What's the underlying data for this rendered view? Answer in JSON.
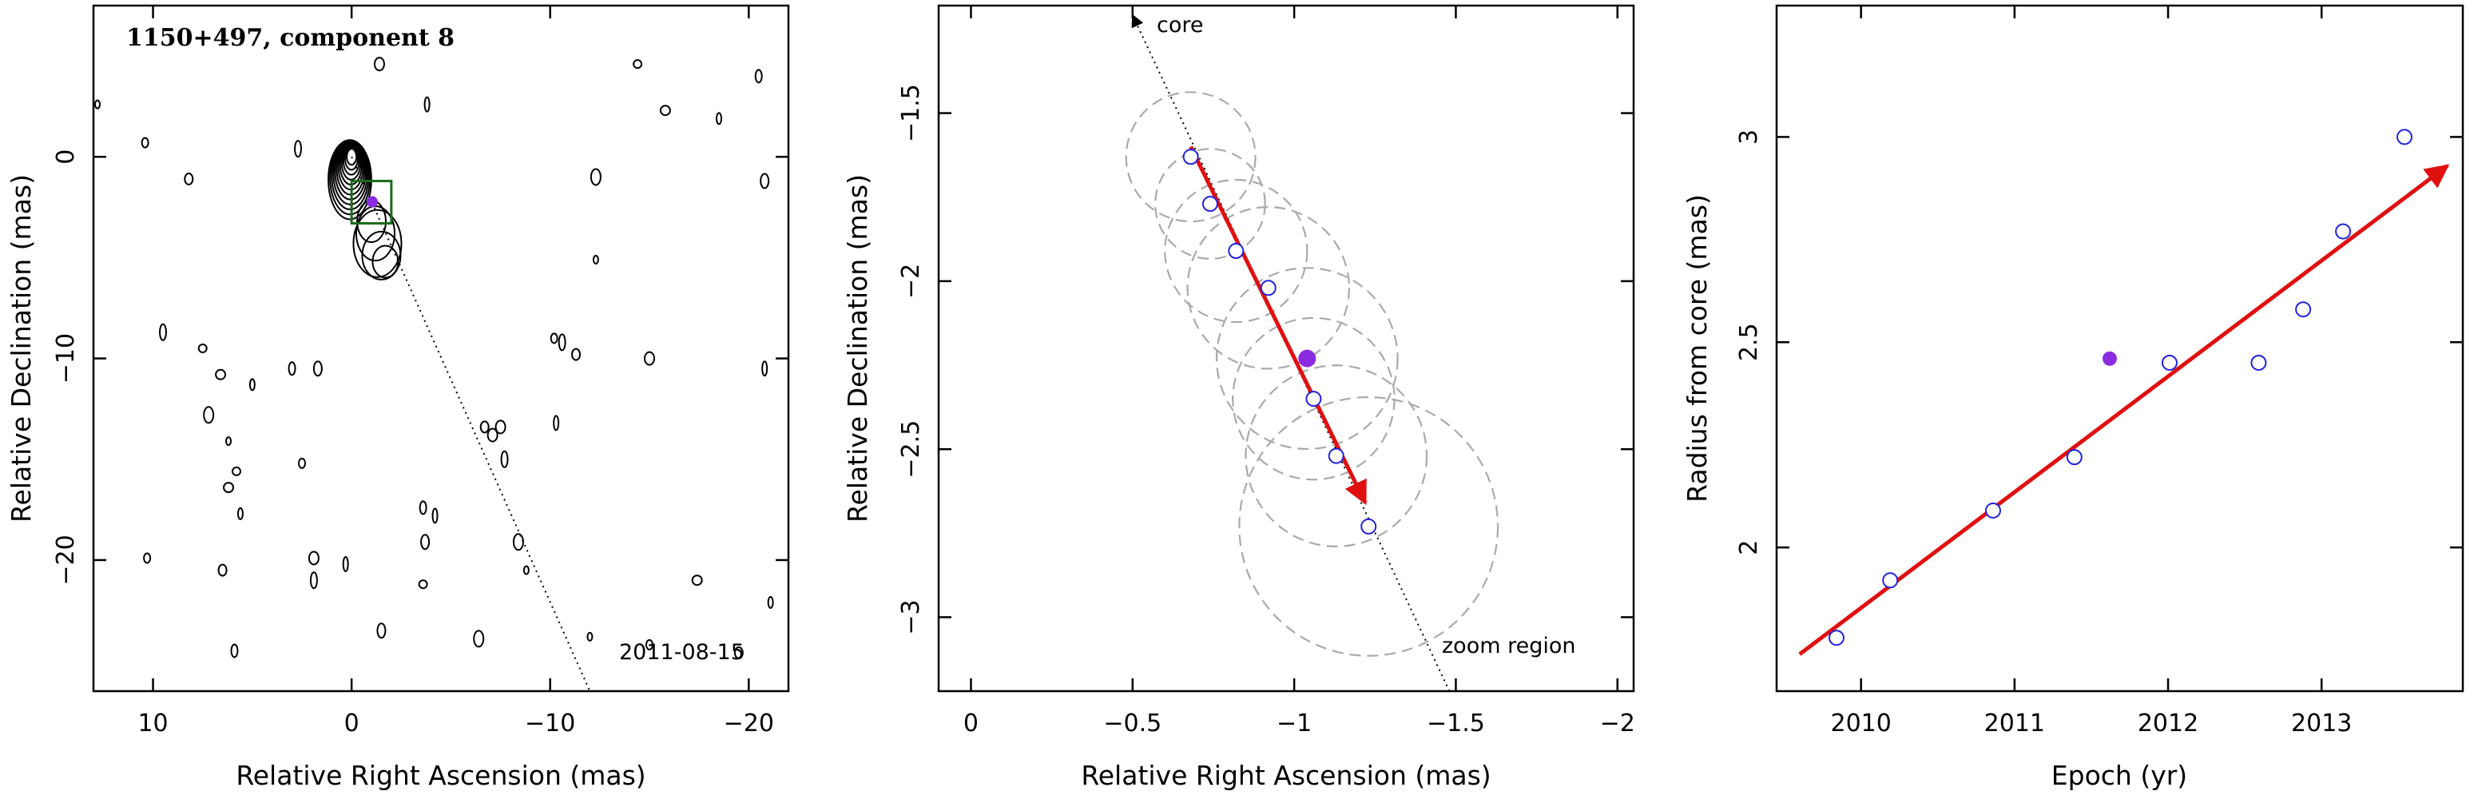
{
  "chart_data": [
    {
      "type": "scatter",
      "panel": "contour map",
      "title": "1150+497, component 8",
      "date_label": "2011-08-15",
      "xlabel": "Relative Right Ascension (mas)",
      "ylabel": "Relative Declination (mas)",
      "xlim": [
        13,
        -22
      ],
      "ylim": [
        -26.5,
        7.5
      ],
      "xticks": [
        10,
        0,
        -10,
        -20
      ],
      "xtick_labels": [
        "10",
        "0",
        "−10",
        "−20"
      ],
      "yticks": [
        0,
        -10,
        -20
      ],
      "ytick_labels": [
        "0",
        "−10",
        "−20"
      ],
      "core": {
        "x": 0,
        "y": 0
      },
      "component": {
        "x": -1.04,
        "y": -2.23
      },
      "zoom_box": {
        "x": [
          0,
          -2
        ],
        "y": [
          -1.2,
          -3.3
        ]
      },
      "jet_line": {
        "x": [
          0,
          -12
        ],
        "y": [
          0,
          -26.5
        ]
      },
      "colors": {
        "component": "#8a2be2",
        "zoom_box": "#1a6b1a"
      }
    },
    {
      "type": "scatter",
      "panel": "zoom region",
      "xlabel": "Relative Right Ascension (mas)",
      "ylabel": "Relative Declination (mas)",
      "xlim": [
        0.1,
        -2.05
      ],
      "ylim": [
        -3.22,
        -1.18
      ],
      "xticks": [
        0,
        -0.5,
        -1,
        -1.5,
        -2
      ],
      "xtick_labels": [
        "0",
        "−0.5",
        "−1",
        "−1.5",
        "−2"
      ],
      "yticks": [
        -1.5,
        -2,
        -2.5,
        -3
      ],
      "ytick_labels": [
        "−1.5",
        "−2",
        "−2.5",
        "−3"
      ],
      "annotations": [
        "core",
        "zoom region"
      ],
      "points": [
        {
          "x": -0.68,
          "y": -1.63,
          "r": 0.2
        },
        {
          "x": -0.74,
          "y": -1.77,
          "r": 0.17
        },
        {
          "x": -0.82,
          "y": -1.91,
          "r": 0.22
        },
        {
          "x": -0.92,
          "y": -2.02,
          "r": 0.25
        },
        {
          "x": -1.06,
          "y": -2.35,
          "r": 0.25
        },
        {
          "x": -1.13,
          "y": -2.52,
          "r": 0.28
        },
        {
          "x": -1.23,
          "y": -2.73,
          "r": 0.4
        }
      ],
      "highlight": {
        "x": -1.04,
        "y": -2.23,
        "r": 0.28
      },
      "arrow": {
        "x": [
          -0.68,
          -1.22
        ],
        "y": [
          -1.6,
          -2.66
        ]
      },
      "line": {
        "x": [
          -0.5,
          -1.48
        ],
        "y": [
          -1.18,
          -3.22
        ]
      },
      "colors": {
        "points": "#2222dd",
        "highlight": "#8a2be2",
        "arrow": "#e01010",
        "circles": "#aaaaaa"
      }
    },
    {
      "type": "scatter",
      "panel": "radius vs epoch",
      "xlabel": "Epoch (yr)",
      "ylabel": "Radius from core (mas)",
      "xlim": [
        2009.45,
        2013.92
      ],
      "ylim": [
        1.65,
        3.32
      ],
      "xticks": [
        2010,
        2011,
        2012,
        2013
      ],
      "xtick_labels": [
        "2010",
        "2011",
        "2012",
        "2013"
      ],
      "yticks": [
        2,
        2.5,
        3
      ],
      "ytick_labels": [
        "2",
        "2.5",
        "3"
      ],
      "points": [
        {
          "x": 2009.84,
          "y": 1.78
        },
        {
          "x": 2010.19,
          "y": 1.92
        },
        {
          "x": 2010.86,
          "y": 2.09
        },
        {
          "x": 2011.39,
          "y": 2.22
        },
        {
          "x": 2012.01,
          "y": 2.45
        },
        {
          "x": 2012.59,
          "y": 2.45
        },
        {
          "x": 2012.88,
          "y": 2.58
        },
        {
          "x": 2013.14,
          "y": 2.77
        },
        {
          "x": 2013.54,
          "y": 3.0
        }
      ],
      "highlight": {
        "x": 2011.62,
        "y": 2.46
      },
      "fit_arrow": {
        "x": [
          2009.6,
          2013.82
        ],
        "y": [
          1.74,
          2.93
        ]
      },
      "colors": {
        "points": "#2222dd",
        "highlight": "#8a2be2",
        "fit": "#e01010"
      }
    }
  ]
}
